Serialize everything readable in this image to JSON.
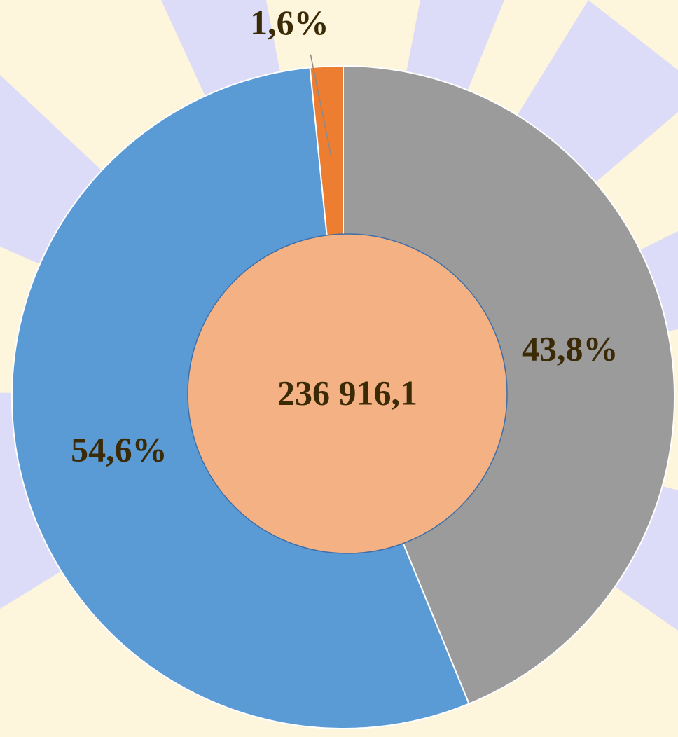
{
  "chart_data": {
    "type": "donut",
    "values": [
      43.8,
      54.6,
      1.6
    ],
    "value_labels": [
      "43,8%",
      "54,6%",
      "1,6%"
    ],
    "colors": [
      "#9b9b9b",
      "#5b9bd5",
      "#ed7d31"
    ],
    "center_label": "236 916,1",
    "center_color": "#f4b183"
  }
}
